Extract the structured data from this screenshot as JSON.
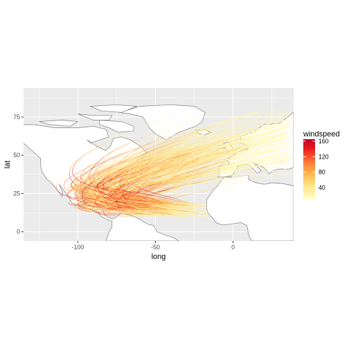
{
  "chart_data": {
    "type": "line",
    "title": "",
    "xlabel": "long",
    "ylabel": "lat",
    "xlim": [
      -135,
      39
    ],
    "ylim": [
      -6,
      94
    ],
    "x_ticks": [
      -100,
      -50,
      0
    ],
    "x_tick_labels": [
      "-100",
      "-50",
      "0"
    ],
    "y_ticks": [
      0,
      25,
      50,
      75
    ],
    "y_tick_labels": [
      "0",
      "25",
      "50",
      "75"
    ],
    "grid": true,
    "legend": {
      "title": "windspeed",
      "position": "right",
      "breaks": [
        40,
        80,
        120,
        160
      ],
      "labels": [
        "40",
        "80",
        "120",
        "160"
      ],
      "range": [
        10,
        165
      ],
      "colors": [
        "#ffffcc",
        "#ffeda0",
        "#fed976",
        "#feb24c",
        "#fd8d3c",
        "#fc4e2a",
        "#e31a1c",
        "#bd0026"
      ]
    },
    "colors": {
      "panel": "#ebebeb",
      "grid_major": "#ffffff",
      "land_fill": "#ffffff",
      "land_border": "#7f7f7f"
    },
    "land_polygons": [
      [
        [
          -168,
          66
        ],
        [
          -162,
          70
        ],
        [
          -150,
          71
        ],
        [
          -140,
          70
        ],
        [
          -128,
          70
        ],
        [
          -115,
          68
        ],
        [
          -100,
          68
        ],
        [
          -90,
          69
        ],
        [
          -82,
          67
        ],
        [
          -80,
          62
        ],
        [
          -92,
          58
        ],
        [
          -94,
          60
        ],
        [
          -88,
          56
        ],
        [
          -82,
          53
        ],
        [
          -79,
          56
        ],
        [
          -77,
          61
        ],
        [
          -72,
          62
        ],
        [
          -66,
          60
        ],
        [
          -60,
          56
        ],
        [
          -56,
          52
        ],
        [
          -60,
          47
        ],
        [
          -66,
          45
        ],
        [
          -70,
          42
        ],
        [
          -74,
          40
        ],
        [
          -76,
          35
        ],
        [
          -81,
          31
        ],
        [
          -80,
          26
        ],
        [
          -81,
          25
        ],
        [
          -83,
          29
        ],
        [
          -89,
          30
        ],
        [
          -94,
          29.5
        ],
        [
          -97,
          27
        ],
        [
          -97.5,
          22
        ],
        [
          -95,
          18.5
        ],
        [
          -91,
          19
        ],
        [
          -87,
          21
        ],
        [
          -88,
          16
        ],
        [
          -84,
          15
        ],
        [
          -83,
          11
        ],
        [
          -79,
          9
        ],
        [
          -77,
          8.5
        ],
        [
          -72,
          12
        ],
        [
          -65,
          10.5
        ],
        [
          -60,
          8
        ],
        [
          -55,
          5
        ],
        [
          -51,
          4
        ],
        [
          -49,
          0
        ],
        [
          -44,
          -2
        ],
        [
          -38,
          -4
        ],
        [
          -35,
          -6
        ],
        [
          -82,
          -6
        ],
        [
          -81,
          -4
        ],
        [
          -80,
          0
        ],
        [
          -78,
          3
        ],
        [
          -78,
          7
        ],
        [
          -81,
          8
        ],
        [
          -85,
          10
        ],
        [
          -87,
          13
        ],
        [
          -92,
          14.5
        ],
        [
          -96,
          16
        ],
        [
          -104,
          19
        ],
        [
          -106,
          23
        ],
        [
          -109,
          27
        ],
        [
          -112,
          31
        ],
        [
          -110,
          26
        ],
        [
          -110,
          23
        ],
        [
          -113,
          27
        ],
        [
          -117,
          32
        ],
        [
          -120,
          34.5
        ],
        [
          -123,
          39
        ],
        [
          -124,
          43
        ],
        [
          -124,
          48
        ],
        [
          -135,
          58
        ],
        [
          -150,
          60
        ],
        [
          -160,
          58
        ],
        [
          -165,
          62
        ]
      ],
      [
        [
          -73,
          78
        ],
        [
          -60,
          82
        ],
        [
          -40,
          83
        ],
        [
          -25,
          82
        ],
        [
          -18,
          78
        ],
        [
          -20,
          72
        ],
        [
          -24,
          69
        ],
        [
          -35,
          65
        ],
        [
          -43,
          60
        ],
        [
          -50,
          64
        ],
        [
          -54,
          68
        ],
        [
          -58,
          75
        ],
        [
          -66,
          77
        ]
      ],
      [
        [
          -125,
          72
        ],
        [
          -110,
          73
        ],
        [
          -100,
          72
        ],
        [
          -105,
          69
        ],
        [
          -118,
          70
        ]
      ],
      [
        [
          -100,
          77
        ],
        [
          -90,
          76
        ],
        [
          -78,
          76
        ],
        [
          -80,
          73
        ],
        [
          -90,
          73
        ]
      ],
      [
        [
          -86,
          73
        ],
        [
          -72,
          72
        ],
        [
          -64,
          69
        ],
        [
          -64,
          66
        ],
        [
          -74,
          65
        ],
        [
          -80,
          68
        ],
        [
          -86,
          70
        ]
      ],
      [
        [
          -92,
          82
        ],
        [
          -75,
          83
        ],
        [
          -62,
          82
        ],
        [
          -72,
          78
        ],
        [
          -85,
          79
        ]
      ],
      [
        [
          -24,
          66.5
        ],
        [
          -18,
          66.5
        ],
        [
          -14,
          65
        ],
        [
          -18,
          63.5
        ],
        [
          -22,
          64
        ]
      ],
      [
        [
          -10,
          36
        ],
        [
          -5,
          36
        ],
        [
          -1,
          36.5
        ],
        [
          0.5,
          38.5
        ],
        [
          3,
          42
        ],
        [
          3,
          43.5
        ],
        [
          10,
          44
        ],
        [
          12,
          42
        ],
        [
          16,
          38
        ],
        [
          18,
          40
        ],
        [
          13,
          45
        ],
        [
          20,
          42
        ],
        [
          23,
          38
        ],
        [
          26,
          40
        ],
        [
          29,
          41
        ],
        [
          36,
          41
        ],
        [
          39,
          42
        ],
        [
          39,
          78
        ],
        [
          30,
          71
        ],
        [
          20,
          70
        ],
        [
          14,
          66
        ],
        [
          10,
          64
        ],
        [
          5,
          62
        ],
        [
          5,
          58
        ],
        [
          8,
          57
        ],
        [
          10,
          55
        ],
        [
          9,
          54
        ],
        [
          5,
          53
        ],
        [
          2,
          51
        ],
        [
          -2,
          48.5
        ],
        [
          -4,
          47
        ],
        [
          -2,
          44
        ],
        [
          -9,
          43
        ],
        [
          -9,
          38
        ]
      ],
      [
        [
          -5.5,
          50
        ],
        [
          1.5,
          51
        ],
        [
          0,
          54
        ],
        [
          -3,
          58.5
        ],
        [
          -6,
          58
        ],
        [
          -5,
          55
        ],
        [
          -3,
          52
        ]
      ],
      [
        [
          -10,
          52
        ],
        [
          -6,
          52
        ],
        [
          -6,
          55
        ],
        [
          -10,
          54
        ]
      ],
      [
        [
          -17,
          21
        ],
        [
          -17,
          15
        ],
        [
          -16,
          12
        ],
        [
          -13,
          9
        ],
        [
          -11,
          6
        ],
        [
          -7,
          4.5
        ],
        [
          -2,
          5
        ],
        [
          5,
          6
        ],
        [
          9,
          4
        ],
        [
          10,
          -2
        ],
        [
          12,
          -6
        ],
        [
          39,
          -6
        ],
        [
          39,
          30
        ],
        [
          32,
          31.5
        ],
        [
          25,
          32
        ],
        [
          20,
          31
        ],
        [
          15,
          32
        ],
        [
          10,
          34
        ],
        [
          10,
          37
        ],
        [
          0,
          35.5
        ],
        [
          -6,
          35.8
        ],
        [
          -10,
          30
        ],
        [
          -13,
          27
        ]
      ],
      [
        [
          -85,
          23
        ],
        [
          -80,
          23.2
        ],
        [
          -74,
          20
        ],
        [
          -78,
          19.8
        ],
        [
          -84,
          21.8
        ]
      ],
      [
        [
          -74,
          19.8
        ],
        [
          -68.5,
          18.5
        ],
        [
          -72,
          17.6
        ]
      ],
      [
        [
          -67.2,
          18.5
        ],
        [
          -65.6,
          18.2
        ],
        [
          -66,
          18
        ],
        [
          -67.2,
          17.9
        ]
      ],
      [
        [
          -78.4,
          18.5
        ],
        [
          -76.2,
          18
        ],
        [
          -77,
          17.8
        ]
      ],
      [
        [
          -165,
          56
        ],
        [
          -158,
          59
        ],
        [
          -153,
          58
        ],
        [
          -160,
          54
        ]
      ]
    ],
    "series": []
  }
}
